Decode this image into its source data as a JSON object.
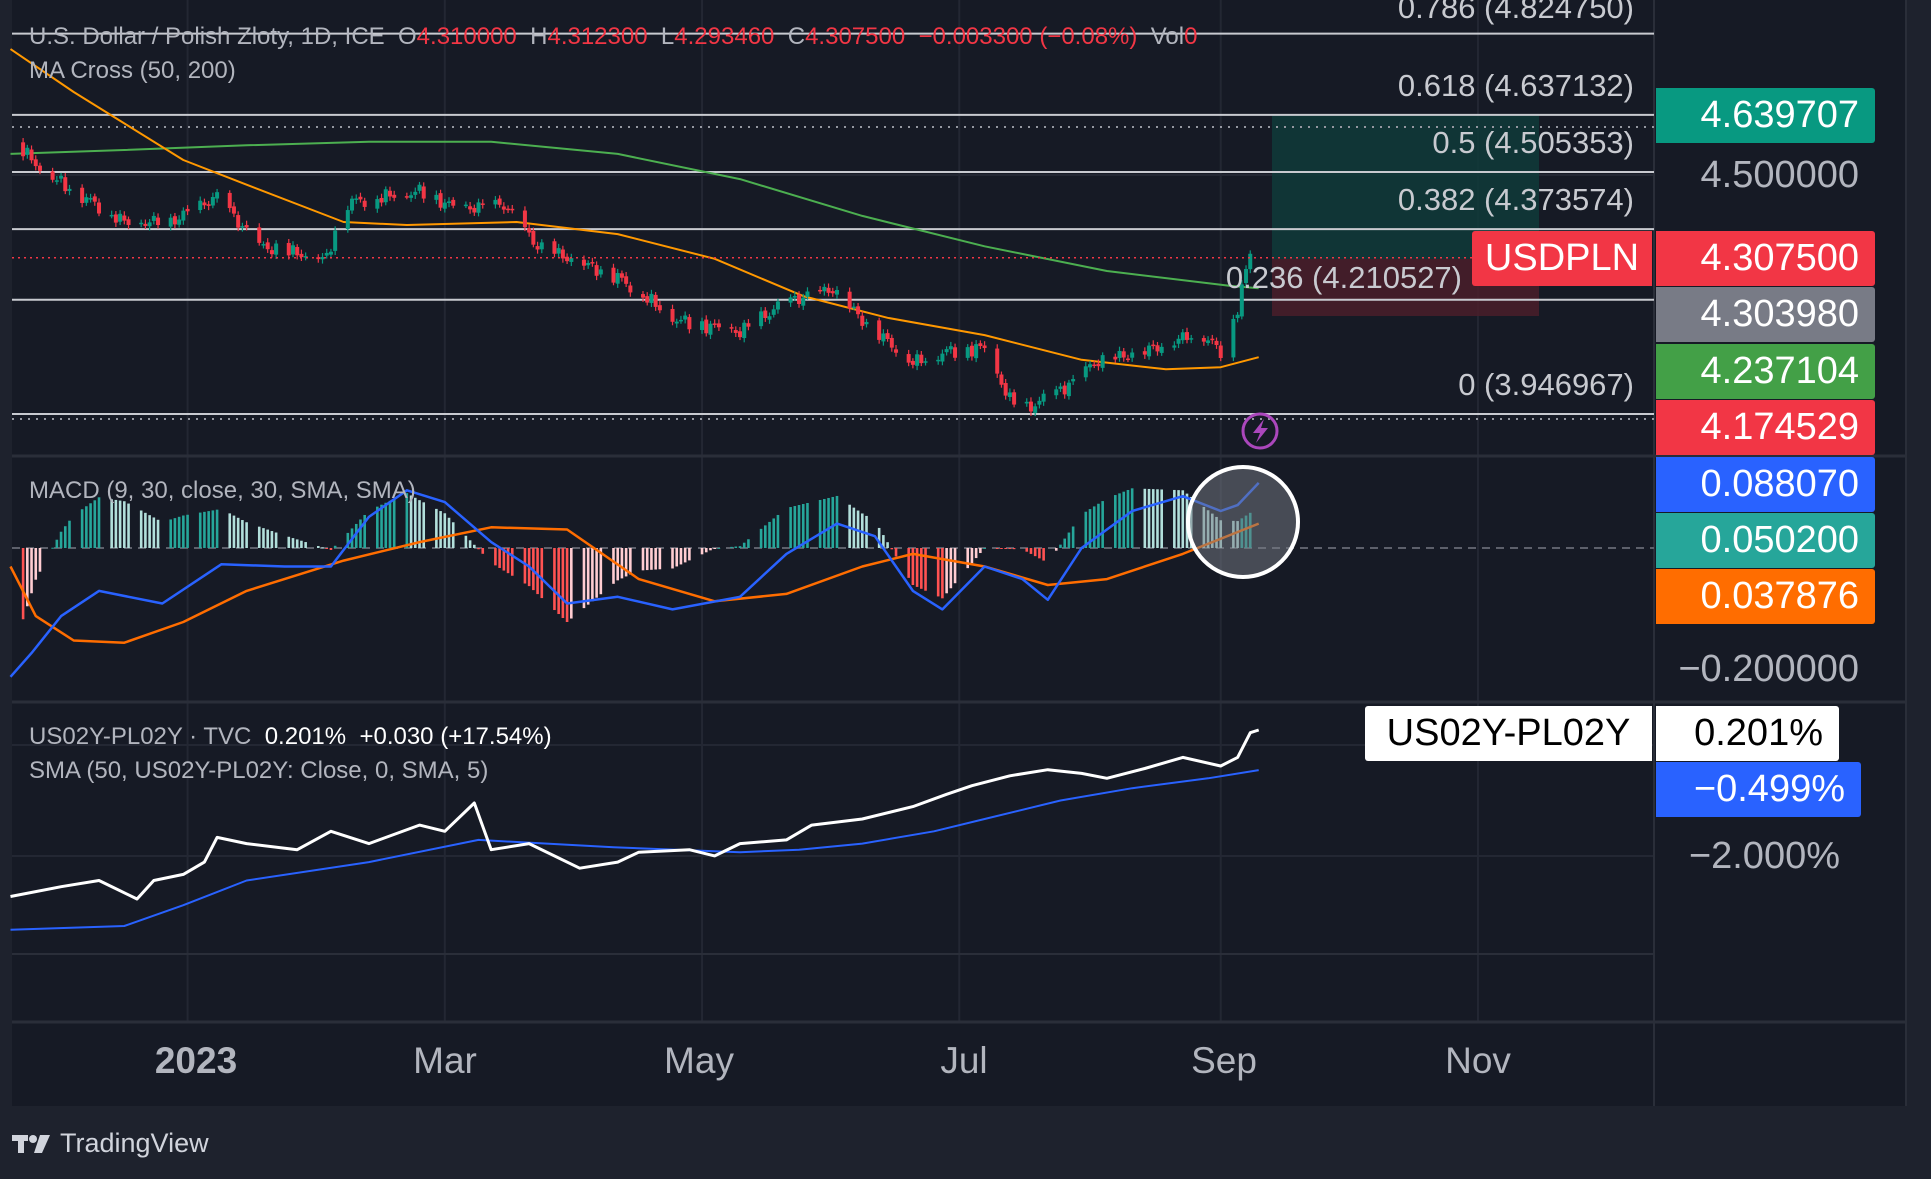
{
  "header": {
    "symbol_title": "U.S. Dollar / Polish Zloty, 1D, ICE",
    "open_label": "O",
    "open": "4.310000",
    "high_label": "H",
    "high": "4.312300",
    "low_label": "L",
    "low": "4.293460",
    "close_label": "C",
    "close": "4.307500",
    "change": "−0.003300 (−0.08%)",
    "volume_label": "Vol",
    "volume": "0",
    "ma_cross": "MA Cross (50, 200)"
  },
  "macd_legend": "MACD (9, 30, close, 30, SMA, SMA)",
  "spread_legend": {
    "name": "US02Y-PL02Y · TVC",
    "value": "0.201%",
    "change": "+0.030 (+17.54%)",
    "sma": "SMA (50, US02Y-PL02Y: Close, 0, SMA, 5)"
  },
  "fib_levels": [
    {
      "label": "0.786 (4.824750)",
      "price": 4.82475
    },
    {
      "label": "0.618 (4.637132)",
      "price": 4.637132
    },
    {
      "label": "0.5 (4.505353)",
      "price": 4.505353
    },
    {
      "label": "0.382 (4.373574)",
      "price": 4.373574
    },
    {
      "label": "0.236 (4.210527)",
      "price": 4.210527
    },
    {
      "label": "0 (3.946967)",
      "price": 3.946967
    }
  ],
  "price_axis": {
    "target": "4.639707",
    "tick_4_5": "4.500000",
    "symbol_tag": "USDPLN",
    "last_price": "4.307500",
    "ma_gray": "4.303980",
    "ma_green": "4.237104",
    "ma_red": "4.174529",
    "macd_value": "0.088070",
    "hist_value": "0.050200",
    "signal_value": "0.037876",
    "macd_tick": "−0.200000",
    "spread_tag": "US02Y-PL02Y",
    "spread_value": "0.201%",
    "sma_value": "−0.499%",
    "spread_tick": "−2.000%"
  },
  "colors": {
    "up": "#089981",
    "down": "#f23645",
    "ma50": "#ff9800",
    "ma200": "#4caf50",
    "macd": "#2962ff",
    "signal": "#ff6d00",
    "spread": "#ffffff",
    "sma": "#2962ff",
    "hist_pos_up": "#26a69a",
    "hist_pos_down": "#b2dfdb",
    "hist_neg_down": "#ff5252",
    "hist_neg_up": "#ffcdd2"
  },
  "time_axis": [
    "2023",
    "Mar",
    "May",
    "Jul",
    "Sep",
    "Nov"
  ],
  "branding": "TradingView",
  "chart_data": [
    {
      "type": "candlestick",
      "title": "USDPLN 1D",
      "x_unit": "days since 2023-01-01",
      "close_path": [
        [
          -43,
          4.574
        ],
        [
          -36,
          4.505
        ],
        [
          -17,
          4.39
        ],
        [
          -6,
          4.39
        ],
        [
          5,
          4.448
        ],
        [
          15,
          4.334
        ],
        [
          31,
          4.305
        ],
        [
          35,
          4.434
        ],
        [
          53,
          4.461
        ],
        [
          62,
          4.42
        ],
        [
          73,
          4.43
        ],
        [
          81,
          4.334
        ],
        [
          100,
          4.263
        ],
        [
          114,
          4.164
        ],
        [
          129,
          4.136
        ],
        [
          140,
          4.206
        ],
        [
          151,
          4.235
        ],
        [
          158,
          4.164
        ],
        [
          170,
          4.065
        ],
        [
          178,
          4.092
        ],
        [
          187,
          4.1
        ],
        [
          193,
          3.979
        ],
        [
          197,
          3.958
        ],
        [
          208,
          4.02
        ],
        [
          213,
          4.065
        ],
        [
          225,
          4.092
        ],
        [
          238,
          4.136
        ],
        [
          243,
          4.092
        ],
        [
          247,
          4.191
        ],
        [
          250,
          4.321
        ],
        [
          251,
          4.3075
        ]
      ],
      "last_bar": {
        "open": 4.31,
        "high": 4.3123,
        "low": 4.29346,
        "close": 4.3075
      },
      "ma50": [
        [
          -44,
          4.789
        ],
        [
          -29,
          4.69
        ],
        [
          -3,
          4.533
        ],
        [
          12,
          4.476
        ],
        [
          35,
          4.39
        ],
        [
          50,
          4.383
        ],
        [
          76,
          4.39
        ],
        [
          100,
          4.362
        ],
        [
          123,
          4.305
        ],
        [
          144,
          4.219
        ],
        [
          164,
          4.169
        ],
        [
          187,
          4.129
        ],
        [
          210,
          4.072
        ],
        [
          230,
          4.05
        ],
        [
          243,
          4.055
        ],
        [
          252,
          4.078
        ]
      ],
      "ma200": [
        [
          -44,
          4.547
        ],
        [
          -17,
          4.556
        ],
        [
          12,
          4.567
        ],
        [
          41,
          4.575
        ],
        [
          70,
          4.575
        ],
        [
          100,
          4.547
        ],
        [
          129,
          4.489
        ],
        [
          158,
          4.404
        ],
        [
          187,
          4.334
        ],
        [
          216,
          4.277
        ],
        [
          245,
          4.243
        ],
        [
          252,
          4.237
        ]
      ],
      "ylim": [
        3.85,
        4.86
      ]
    },
    {
      "type": "line",
      "title": "MACD (9, 30, close, 30, SMA, SMA)",
      "x_unit": "days since 2023-01-01",
      "macd": [
        [
          -44,
          -0.174
        ],
        [
          -39,
          -0.142
        ],
        [
          -32,
          -0.092
        ],
        [
          -23,
          -0.058
        ],
        [
          -8,
          -0.075
        ],
        [
          6,
          -0.022
        ],
        [
          21,
          -0.025
        ],
        [
          32,
          -0.025
        ],
        [
          41,
          0.042
        ],
        [
          50,
          0.078
        ],
        [
          59,
          0.062
        ],
        [
          70,
          0.008
        ],
        [
          79,
          -0.025
        ],
        [
          88,
          -0.075
        ],
        [
          100,
          -0.066
        ],
        [
          113,
          -0.083
        ],
        [
          129,
          -0.066
        ],
        [
          140,
          -0.008
        ],
        [
          152,
          0.033
        ],
        [
          161,
          0.016
        ],
        [
          170,
          -0.058
        ],
        [
          177,
          -0.083
        ],
        [
          187,
          -0.025
        ],
        [
          196,
          -0.042
        ],
        [
          202,
          -0.07
        ],
        [
          210,
          0
        ],
        [
          222,
          0.05
        ],
        [
          234,
          0.07
        ],
        [
          243,
          0.05
        ],
        [
          247,
          0.058
        ],
        [
          252,
          0.088
        ]
      ],
      "signal": [
        [
          -44,
          -0.025
        ],
        [
          -38,
          -0.092
        ],
        [
          -29,
          -0.125
        ],
        [
          -17,
          -0.128
        ],
        [
          -3,
          -0.1
        ],
        [
          12,
          -0.058
        ],
        [
          35,
          -0.017
        ],
        [
          53,
          0.008
        ],
        [
          70,
          0.028
        ],
        [
          88,
          0.025
        ],
        [
          105,
          -0.042
        ],
        [
          123,
          -0.072
        ],
        [
          140,
          -0.062
        ],
        [
          158,
          -0.025
        ],
        [
          170,
          -0.008
        ],
        [
          187,
          -0.025
        ],
        [
          202,
          -0.05
        ],
        [
          216,
          -0.042
        ],
        [
          234,
          -0.008
        ],
        [
          252,
          0.033
        ]
      ],
      "histogram": "macd minus signal",
      "ylim": [
        -0.21,
        0.12
      ]
    },
    {
      "type": "line",
      "title": "US02Y-PL02Y spread (%)",
      "x_unit": "days since 2023-01-01",
      "spread": [
        [
          -44,
          -2.708
        ],
        [
          -32,
          -2.536
        ],
        [
          -23,
          -2.428
        ],
        [
          -14,
          -2.751
        ],
        [
          -10,
          -2.428
        ],
        [
          -3,
          -2.321
        ],
        [
          2,
          -2.107
        ],
        [
          5,
          -1.675
        ],
        [
          12,
          -1.783
        ],
        [
          24,
          -1.89
        ],
        [
          32,
          -1.568
        ],
        [
          41,
          -1.783
        ],
        [
          53,
          -1.46
        ],
        [
          59,
          -1.568
        ],
        [
          66,
          -1.074
        ],
        [
          70,
          -1.89
        ],
        [
          79,
          -1.783
        ],
        [
          91,
          -2.213
        ],
        [
          100,
          -2.107
        ],
        [
          105,
          -1.934
        ],
        [
          117,
          -1.89
        ],
        [
          123,
          -1.998
        ],
        [
          129,
          -1.783
        ],
        [
          140,
          -1.719
        ],
        [
          146,
          -1.46
        ],
        [
          158,
          -1.354
        ],
        [
          170,
          -1.137
        ],
        [
          178,
          -0.922
        ],
        [
          184,
          -0.772
        ],
        [
          193,
          -0.599
        ],
        [
          202,
          -0.492
        ],
        [
          210,
          -0.557
        ],
        [
          216,
          -0.643
        ],
        [
          225,
          -0.471
        ],
        [
          234,
          -0.277
        ],
        [
          243,
          -0.428
        ],
        [
          247,
          -0.277
        ],
        [
          250,
          0.154
        ],
        [
          252,
          0.201
        ]
      ],
      "sma": [
        [
          -44,
          -3.29
        ],
        [
          -17,
          -3.223
        ],
        [
          -3,
          -2.859
        ],
        [
          12,
          -2.428
        ],
        [
          41,
          -2.107
        ],
        [
          67,
          -1.719
        ],
        [
          99,
          -1.848
        ],
        [
          129,
          -1.934
        ],
        [
          143,
          -1.89
        ],
        [
          158,
          -1.783
        ],
        [
          175,
          -1.568
        ],
        [
          187,
          -1.354
        ],
        [
          205,
          -1.03
        ],
        [
          222,
          -0.816
        ],
        [
          240,
          -0.643
        ],
        [
          252,
          -0.499
        ]
      ],
      "ylim": [
        -3.4,
        0.5
      ]
    }
  ]
}
